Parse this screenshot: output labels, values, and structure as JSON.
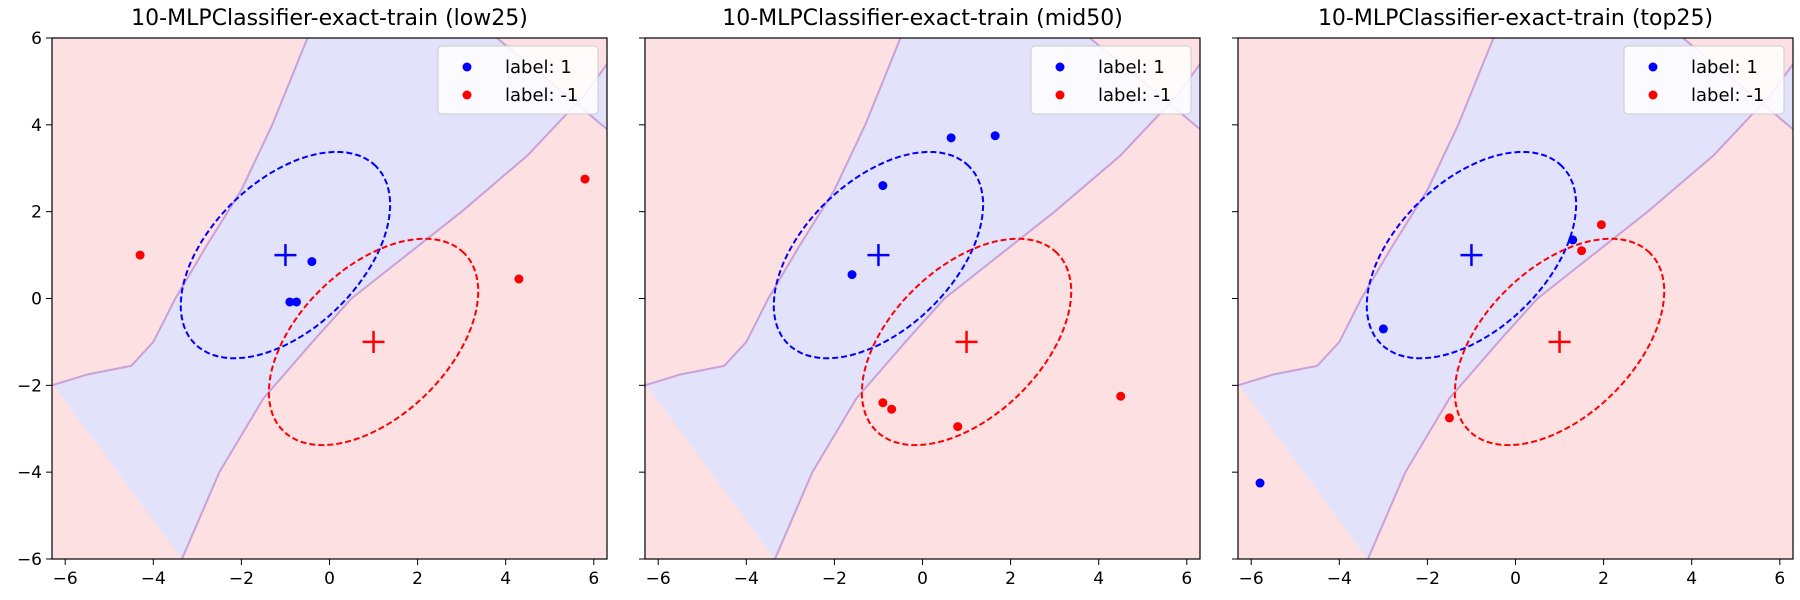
{
  "figure": {
    "colors": {
      "class_pos_region": "#e2e2fb",
      "class_neg_region": "#fde1e2",
      "boundary": "#c9a0d8",
      "positive": "#0000ff",
      "negative": "#ff0000"
    }
  },
  "chart_data": [
    {
      "type": "scatter",
      "title": "10-MLPClassifier-exact-train (low25)",
      "xlim": [
        -6.3,
        6.3
      ],
      "ylim": [
        -6,
        6
      ],
      "xticks": [
        -6,
        -4,
        -2,
        0,
        2,
        4,
        6
      ],
      "yticks": [
        -6,
        -4,
        -2,
        0,
        2,
        4,
        6
      ],
      "show_y_tick_labels": true,
      "legend": {
        "position": "top-right",
        "entries": [
          "label: 1",
          "label: -1"
        ]
      },
      "series": [
        {
          "name": "label: 1",
          "color": "#0000ff",
          "points": [
            [
              -0.4,
              0.85
            ],
            [
              -0.9,
              -0.08
            ],
            [
              -0.75,
              -0.08
            ]
          ]
        },
        {
          "name": "label: -1",
          "color": "#ff0000",
          "points": [
            [
              -4.3,
              1.0
            ],
            [
              4.3,
              0.45
            ],
            [
              5.8,
              2.75
            ]
          ]
        }
      ],
      "centers": [
        {
          "x": -1,
          "y": 1,
          "color": "#0000ff"
        },
        {
          "x": 1,
          "y": -1,
          "color": "#ff0000"
        }
      ],
      "ellipses": [
        {
          "cx": -1,
          "cy": 1,
          "color": "#0000ff"
        },
        {
          "cx": 1,
          "cy": -1,
          "color": "#ff0000"
        }
      ]
    },
    {
      "type": "scatter",
      "title": "10-MLPClassifier-exact-train (mid50)",
      "xlim": [
        -6.3,
        6.3
      ],
      "ylim": [
        -6,
        6
      ],
      "xticks": [
        -6,
        -4,
        -2,
        0,
        2,
        4,
        6
      ],
      "yticks": [
        -6,
        -4,
        -2,
        0,
        2,
        4,
        6
      ],
      "show_y_tick_labels": false,
      "legend": {
        "position": "top-right",
        "entries": [
          "label: 1",
          "label: -1"
        ]
      },
      "series": [
        {
          "name": "label: 1",
          "color": "#0000ff",
          "points": [
            [
              -1.6,
              0.55
            ],
            [
              -0.9,
              2.6
            ],
            [
              0.65,
              3.7
            ],
            [
              1.65,
              3.75
            ]
          ]
        },
        {
          "name": "label: -1",
          "color": "#ff0000",
          "points": [
            [
              -0.9,
              -2.4
            ],
            [
              -0.7,
              -2.55
            ],
            [
              0.8,
              -2.95
            ],
            [
              4.5,
              -2.25
            ]
          ]
        }
      ],
      "centers": [
        {
          "x": -1,
          "y": 1,
          "color": "#0000ff"
        },
        {
          "x": 1,
          "y": -1,
          "color": "#ff0000"
        }
      ],
      "ellipses": [
        {
          "cx": -1,
          "cy": 1,
          "color": "#0000ff"
        },
        {
          "cx": 1,
          "cy": -1,
          "color": "#ff0000"
        }
      ]
    },
    {
      "type": "scatter",
      "title": "10-MLPClassifier-exact-train (top25)",
      "xlim": [
        -6.3,
        6.3
      ],
      "ylim": [
        -6,
        6
      ],
      "xticks": [
        -6,
        -4,
        -2,
        0,
        2,
        4,
        6
      ],
      "yticks": [
        -6,
        -4,
        -2,
        0,
        2,
        4,
        6
      ],
      "show_y_tick_labels": false,
      "legend": {
        "position": "top-right",
        "entries": [
          "label: 1",
          "label: -1"
        ]
      },
      "series": [
        {
          "name": "label: 1",
          "color": "#0000ff",
          "points": [
            [
              -5.8,
              -4.25
            ],
            [
              -3.0,
              -0.7
            ],
            [
              1.3,
              1.35
            ]
          ]
        },
        {
          "name": "label: -1",
          "color": "#ff0000",
          "points": [
            [
              -1.5,
              -2.75
            ],
            [
              1.5,
              1.1
            ],
            [
              1.95,
              1.7
            ]
          ]
        }
      ],
      "centers": [
        {
          "x": -1,
          "y": 1,
          "color": "#0000ff"
        },
        {
          "x": 1,
          "y": -1,
          "color": "#ff0000"
        }
      ],
      "ellipses": [
        {
          "cx": -1,
          "cy": 1,
          "color": "#0000ff"
        },
        {
          "cx": 1,
          "cy": -1,
          "color": "#ff0000"
        }
      ]
    }
  ]
}
